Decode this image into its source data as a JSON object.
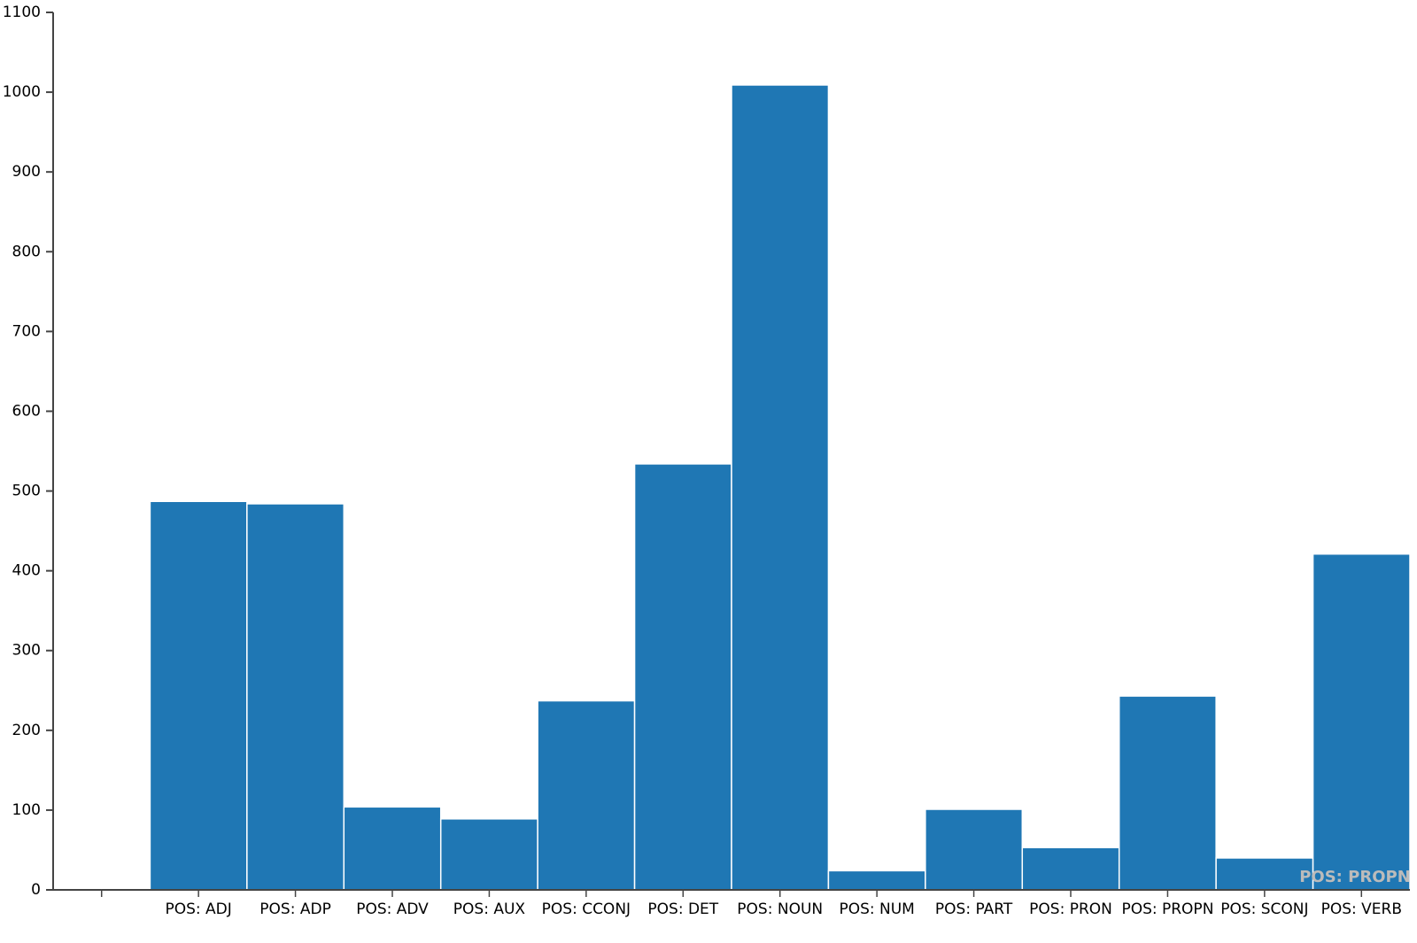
{
  "chart_data": {
    "type": "bar",
    "categories": [
      null,
      "POS: ADJ",
      "POS: ADP",
      "POS: ADV",
      "POS: AUX",
      "POS: CCONJ",
      "POS: DET",
      "POS: NOUN",
      "POS: NUM",
      "POS: PART",
      "POS: PRON",
      "POS: PROPN",
      "POS: SCONJ",
      "POS: VERB"
    ],
    "values": [
      null,
      487,
      484,
      104,
      89,
      237,
      534,
      1009,
      24,
      101,
      53,
      243,
      40,
      421
    ],
    "color": "#1f77b4",
    "ylim": [
      0,
      1100
    ],
    "yticks": [
      0,
      100,
      200,
      300,
      400,
      500,
      600,
      700,
      800,
      900,
      1000,
      1100
    ],
    "annotation": "POS: PROPN"
  }
}
